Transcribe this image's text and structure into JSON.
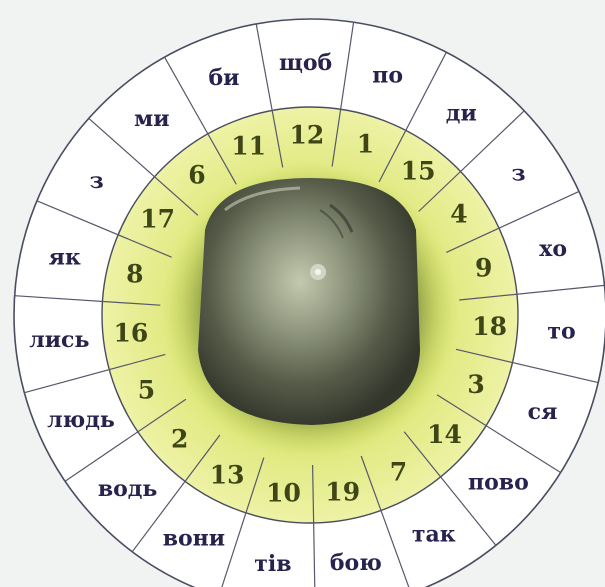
{
  "colors": {
    "background": "#f1f3f2",
    "outer_ring": "#ffffff",
    "inner_ring": "#eef2a6",
    "inner_ring_glow": "#d5e26a",
    "disk_light": "#b9c0a4",
    "disk_dark": "#3b3f33",
    "syllable_text": "#26234d",
    "number_text": "#3e4516",
    "lines": "#4a4d60"
  },
  "wheel": {
    "segments": [
      {
        "number": "12",
        "syllable": "щоб"
      },
      {
        "number": "1",
        "syllable": "по"
      },
      {
        "number": "15",
        "syllable": "ди"
      },
      {
        "number": "4",
        "syllable": "з"
      },
      {
        "number": "9",
        "syllable": "хо"
      },
      {
        "number": "18",
        "syllable": "то"
      },
      {
        "number": "3",
        "syllable": "ся"
      },
      {
        "number": "14",
        "syllable": "пово"
      },
      {
        "number": "7",
        "syllable": "так"
      },
      {
        "number": "19",
        "syllable": "бою"
      },
      {
        "number": "10",
        "syllable": "тів"
      },
      {
        "number": "13",
        "syllable": "вони"
      },
      {
        "number": "2",
        "syllable": "водь"
      },
      {
        "number": "5",
        "syllable": "людь"
      },
      {
        "number": "16",
        "syllable": "лись"
      },
      {
        "number": "8",
        "syllable": "як"
      },
      {
        "number": "17",
        "syllable": "з"
      },
      {
        "number": "6",
        "syllable": "ми"
      },
      {
        "number": "11",
        "syllable": "би"
      }
    ]
  }
}
